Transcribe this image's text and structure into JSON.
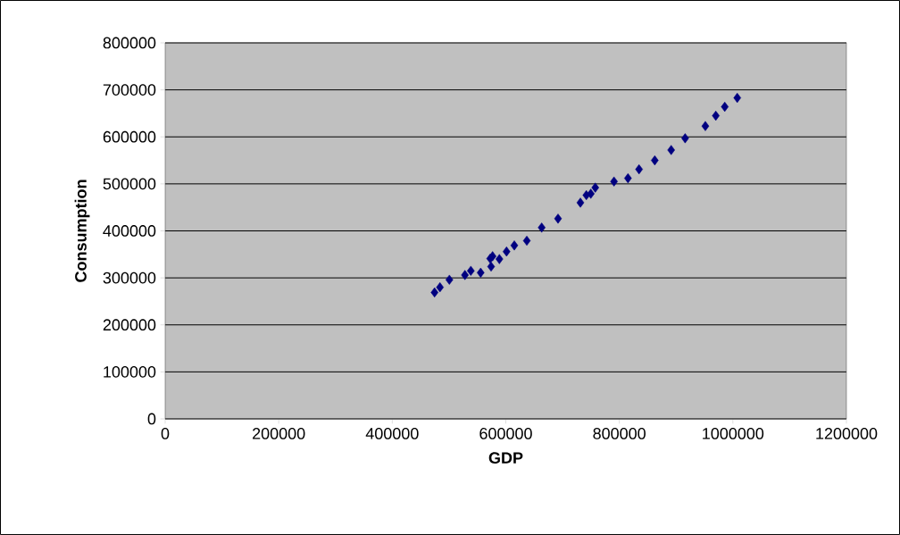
{
  "chart_data": {
    "type": "scatter",
    "xlabel": "GDP",
    "ylabel": "Consumption",
    "x": [
      474500,
      484000,
      500600,
      528000,
      538400,
      555700,
      572500,
      576700,
      574100,
      588700,
      601300,
      615000,
      637000,
      663200,
      692000,
      731400,
      741900,
      749700,
      757600,
      790600,
      815200,
      834700,
      862400,
      891300,
      915900,
      951500,
      969900,
      985700,
      1007700
    ],
    "values": [
      269000,
      280000,
      296000,
      306000,
      315000,
      311000,
      341000,
      346000,
      324000,
      340000,
      356000,
      369000,
      379000,
      407000,
      426000,
      460000,
      476000,
      479000,
      492000,
      505000,
      512000,
      531000,
      550000,
      572000,
      597000,
      623000,
      645000,
      664000,
      683000
    ],
    "color": "#000080",
    "marker": "diamond",
    "xlim": [
      0,
      1200000
    ],
    "ylim": [
      0,
      800000
    ],
    "xticks": [
      0,
      200000,
      400000,
      600000,
      800000,
      1000000,
      1200000
    ],
    "yticks": [
      0,
      100000,
      200000,
      300000,
      400000,
      500000,
      600000,
      700000,
      800000
    ],
    "grid": "y"
  }
}
